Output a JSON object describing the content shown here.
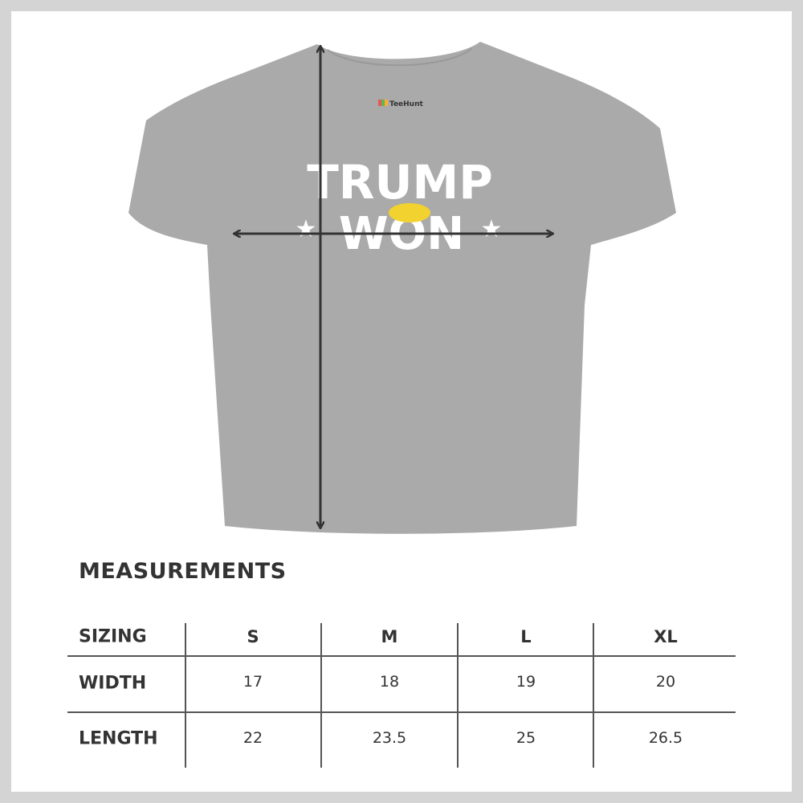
{
  "shirt": {
    "brand_label": "TeeHunt",
    "print_line1": "TRUMP",
    "print_line2": "WON",
    "shirt_color": "#a9a9a9",
    "print_color": "#ffffff",
    "hair_color": "#f2d22e"
  },
  "title": "MEASUREMENTS",
  "table": {
    "header": [
      "SIZING",
      "S",
      "M",
      "L",
      "XL"
    ],
    "rows": [
      {
        "label": "WIDTH",
        "values": [
          "17",
          "18",
          "19",
          "20"
        ]
      },
      {
        "label": "LENGTH",
        "values": [
          "22",
          "23.5",
          "25",
          "26.5"
        ]
      }
    ]
  }
}
